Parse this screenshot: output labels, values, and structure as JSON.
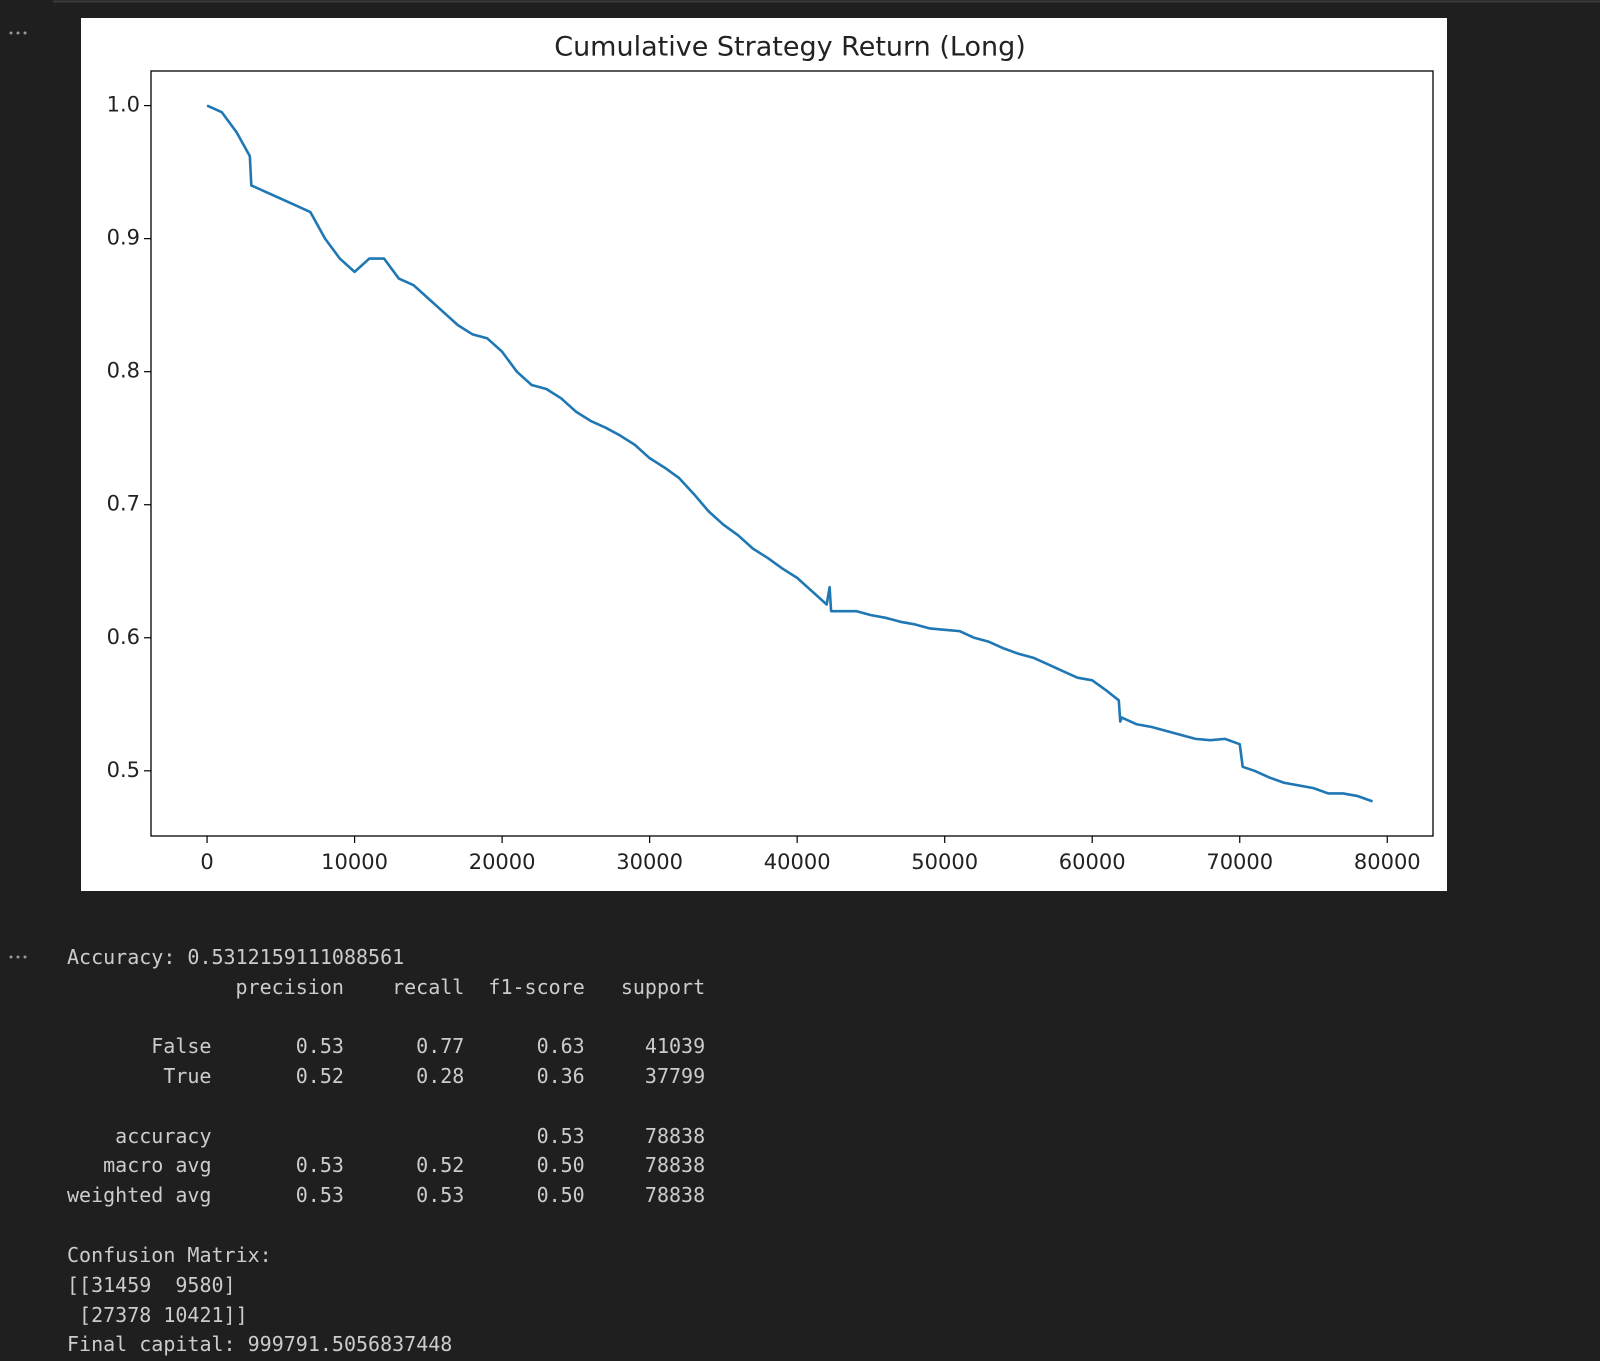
{
  "chart_data": {
    "type": "line",
    "title": "Cumulative Strategy Return (Long)",
    "color": "#1f77b4",
    "x": [
      0,
      1000,
      2000,
      2900,
      3000,
      4000,
      5000,
      6000,
      7000,
      8000,
      9000,
      10000,
      11000,
      12000,
      13000,
      14000,
      15000,
      16000,
      17000,
      18000,
      19000,
      20000,
      21000,
      22000,
      23000,
      24000,
      25000,
      26000,
      27000,
      28000,
      29000,
      30000,
      31000,
      32000,
      33000,
      34000,
      35000,
      36000,
      37000,
      38000,
      39000,
      40000,
      41000,
      42000,
      42200,
      42300,
      43000,
      44000,
      45000,
      46000,
      47000,
      48000,
      49000,
      50000,
      51000,
      52000,
      53000,
      54000,
      55000,
      56000,
      57000,
      58000,
      59000,
      60000,
      61000,
      61800,
      61900,
      62000,
      63000,
      64000,
      65000,
      66000,
      67000,
      68000,
      69000,
      70000,
      70200,
      71000,
      72000,
      73000,
      74000,
      75000,
      76000,
      77000,
      78000,
      79000
    ],
    "values": [
      1.0,
      0.995,
      0.98,
      0.962,
      0.94,
      0.935,
      0.93,
      0.925,
      0.92,
      0.9,
      0.885,
      0.875,
      0.885,
      0.885,
      0.87,
      0.865,
      0.855,
      0.845,
      0.835,
      0.828,
      0.825,
      0.815,
      0.8,
      0.79,
      0.787,
      0.78,
      0.77,
      0.763,
      0.758,
      0.752,
      0.745,
      0.735,
      0.728,
      0.72,
      0.708,
      0.695,
      0.685,
      0.677,
      0.667,
      0.66,
      0.652,
      0.645,
      0.635,
      0.625,
      0.638,
      0.62,
      0.62,
      0.62,
      0.617,
      0.615,
      0.612,
      0.61,
      0.607,
      0.606,
      0.605,
      0.6,
      0.597,
      0.592,
      0.588,
      0.585,
      0.58,
      0.575,
      0.57,
      0.568,
      0.56,
      0.553,
      0.537,
      0.54,
      0.535,
      0.533,
      0.53,
      0.527,
      0.524,
      0.523,
      0.524,
      0.52,
      0.503,
      0.5,
      0.495,
      0.491,
      0.489,
      0.487,
      0.483,
      0.483,
      0.481,
      0.477
    ],
    "xlim": [
      -3800,
      83100
    ],
    "xticks": [
      0,
      10000,
      20000,
      30000,
      40000,
      50000,
      60000,
      70000,
      80000
    ],
    "ylim": [
      0.451,
      1.026
    ],
    "yticks": [
      0.5,
      0.6,
      0.7,
      0.8,
      0.9,
      {
        "value": 1,
        "label": "1.0"
      }
    ],
    "grid": false
  },
  "output": {
    "accuracy_line": "Accuracy: 0.5312159111088561",
    "report_header": [
      "precision",
      "recall",
      "f1-score",
      "support"
    ],
    "report_rows": [
      [
        "False",
        "0.53",
        "0.77",
        "0.63",
        "41039"
      ],
      [
        "True",
        "0.52",
        "0.28",
        "0.36",
        "37799"
      ],
      [
        "accuracy",
        "",
        "",
        "0.53",
        "78838"
      ],
      [
        "macro avg",
        "0.53",
        "0.52",
        "0.50",
        "78838"
      ],
      [
        "weighted avg",
        "0.53",
        "0.53",
        "0.50",
        "78838"
      ]
    ],
    "confusion_title": "Confusion Matrix:",
    "confusion_lines": [
      "[[31459  9580]",
      " [27378 10421]]"
    ],
    "final_capital": "Final capital: 999791.5056837448"
  }
}
